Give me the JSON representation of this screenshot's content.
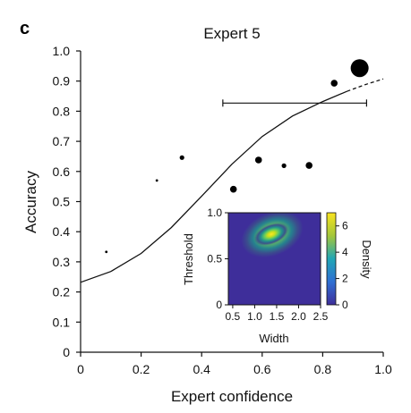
{
  "chart_data": {
    "type": "scatter",
    "panel_label": "c",
    "title": "Expert 5",
    "xlabel": "Expert confidence",
    "ylabel": "Accuracy",
    "xlim": [
      0,
      1.0
    ],
    "ylim": [
      0,
      1.0
    ],
    "xticks": [
      "0",
      "0.2",
      "0.4",
      "0.6",
      "0.8",
      "1.0"
    ],
    "yticks": [
      "0",
      "0.1",
      "0.2",
      "0.3",
      "0.4",
      "0.5",
      "0.6",
      "0.7",
      "0.8",
      "0.9",
      "1.0"
    ],
    "points": [
      {
        "x": 0.085,
        "y": 0.333,
        "size": "tiny"
      },
      {
        "x": 0.252,
        "y": 0.57,
        "size": "tiny"
      },
      {
        "x": 0.335,
        "y": 0.646,
        "size": "small"
      },
      {
        "x": 0.505,
        "y": 0.541,
        "size": "medium"
      },
      {
        "x": 0.588,
        "y": 0.638,
        "size": "medium"
      },
      {
        "x": 0.672,
        "y": 0.619,
        "size": "small"
      },
      {
        "x": 0.755,
        "y": 0.62,
        "size": "medium"
      },
      {
        "x": 0.838,
        "y": 0.893,
        "size": "medium"
      },
      {
        "x": 0.922,
        "y": 0.943,
        "size": "large"
      }
    ],
    "fit_curve": {
      "style": "solid then dashed at high confidence",
      "points": [
        [
          0,
          0.232
        ],
        [
          0.1,
          0.268
        ],
        [
          0.2,
          0.328
        ],
        [
          0.3,
          0.414
        ],
        [
          0.4,
          0.518
        ],
        [
          0.5,
          0.624
        ],
        [
          0.6,
          0.716
        ],
        [
          0.7,
          0.784
        ],
        [
          0.8,
          0.832
        ],
        [
          0.88,
          0.866
        ],
        [
          0.94,
          0.888
        ],
        [
          1.0,
          0.907
        ]
      ],
      "dashed_from_x": 0.92
    },
    "error_bar": {
      "y": 0.827,
      "x_min": 0.47,
      "x_max": 0.945
    },
    "inset": {
      "type": "heatmap",
      "xlabel": "Width",
      "ylabel": "Threshold",
      "colorbar_label": "Density",
      "xlim": [
        0.4,
        2.5
      ],
      "ylim": [
        0,
        1.0
      ],
      "xticks": [
        "0.5",
        "1.0",
        "1.5",
        "2.0",
        "2.5"
      ],
      "yticks": [
        "0",
        "0.5",
        "1.0"
      ],
      "colorbar_range": [
        0,
        7
      ],
      "colorbar_ticks": [
        "0",
        "2",
        "4",
        "6"
      ],
      "peak": {
        "width": 1.55,
        "threshold": 0.79
      },
      "colormap": [
        "#440154",
        "#3b528b",
        "#21918c",
        "#5ec962",
        "#fde725"
      ]
    }
  }
}
